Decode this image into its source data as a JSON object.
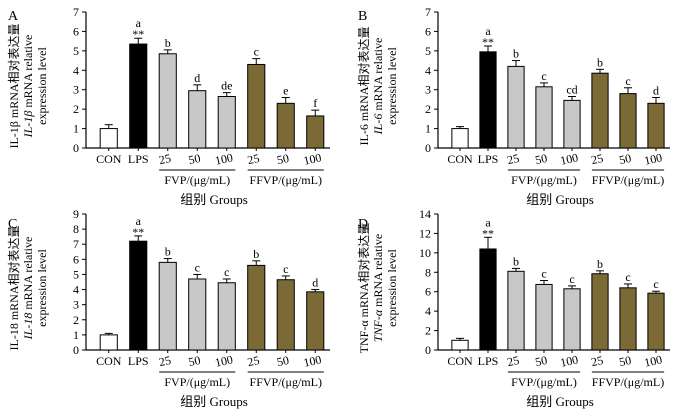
{
  "colors": {
    "con": "#ffffff",
    "lps": "#000000",
    "fvp": "#c8c8c8",
    "ffvp": "#7b6a35"
  },
  "chart_data": [
    {
      "type": "bar",
      "panel_label": "A",
      "ylabel": {
        "prefix": "",
        "italic": "IL-1β",
        "rest": " mRNA relative",
        "line2": "expression level",
        "cn": "IL-1β mRNA相对表达量"
      },
      "ylim": [
        0,
        7
      ],
      "yticks": [
        0,
        1,
        2,
        3,
        4,
        5,
        6,
        7
      ],
      "categories": [
        "CON",
        "LPS",
        "25",
        "50",
        "100",
        "25",
        "50",
        "100"
      ],
      "groups": [
        "con",
        "lps",
        "fvp",
        "fvp",
        "fvp",
        "ffvp",
        "ffvp",
        "ffvp"
      ],
      "values": [
        1.0,
        5.35,
        4.85,
        2.95,
        2.65,
        4.3,
        2.3,
        1.65
      ],
      "errors": [
        0.2,
        0.3,
        0.2,
        0.3,
        0.2,
        0.3,
        0.3,
        0.3
      ],
      "letters": [
        "",
        "a",
        "b",
        "d",
        "de",
        "c",
        "e",
        "f"
      ],
      "stars": [
        "",
        "**",
        "",
        "",
        "",
        "",
        "",
        ""
      ],
      "group_labels": [
        "FVP/(μg/mL)",
        "FFVP/(μg/mL)"
      ],
      "xlabel": "组别 Groups"
    },
    {
      "type": "bar",
      "panel_label": "B",
      "ylabel": {
        "prefix": "",
        "italic": "IL-6",
        "rest": " mRNA relative",
        "line2": "expression level",
        "cn": "IL-6 mRNA相对表达量"
      },
      "ylim": [
        0,
        7
      ],
      "yticks": [
        0,
        1,
        2,
        3,
        4,
        5,
        6,
        7
      ],
      "categories": [
        "CON",
        "LPS",
        "25",
        "50",
        "100",
        "25",
        "50",
        "100"
      ],
      "groups": [
        "con",
        "lps",
        "fvp",
        "fvp",
        "fvp",
        "ffvp",
        "ffvp",
        "ffvp"
      ],
      "values": [
        1.0,
        4.95,
        4.2,
        3.15,
        2.45,
        3.85,
        2.8,
        2.3
      ],
      "errors": [
        0.1,
        0.3,
        0.3,
        0.2,
        0.2,
        0.2,
        0.3,
        0.3
      ],
      "letters": [
        "",
        "a",
        "b",
        "c",
        "cd",
        "b",
        "c",
        "d"
      ],
      "stars": [
        "",
        "**",
        "",
        "",
        "",
        "",
        "",
        ""
      ],
      "group_labels": [
        "FVP/(μg/mL)",
        "FFVP/(μg/mL)"
      ],
      "xlabel": "组别 Groups"
    },
    {
      "type": "bar",
      "panel_label": "C",
      "ylabel": {
        "prefix": "",
        "italic": "IL-18",
        "rest": " mRNA relative",
        "line2": "expression level",
        "cn": "IL-18 mRNA相对表达量"
      },
      "ylim": [
        0,
        9
      ],
      "yticks": [
        0,
        1,
        2,
        3,
        4,
        5,
        6,
        7,
        8,
        9
      ],
      "categories": [
        "CON",
        "LPS",
        "25",
        "50",
        "100",
        "25",
        "50",
        "100"
      ],
      "groups": [
        "con",
        "lps",
        "fvp",
        "fvp",
        "fvp",
        "ffvp",
        "ffvp",
        "ffvp"
      ],
      "values": [
        1.0,
        7.2,
        5.8,
        4.7,
        4.45,
        5.6,
        4.65,
        3.85
      ],
      "errors": [
        0.1,
        0.35,
        0.25,
        0.3,
        0.25,
        0.3,
        0.25,
        0.15
      ],
      "letters": [
        "",
        "a",
        "b",
        "c",
        "c",
        "b",
        "c",
        "d"
      ],
      "stars": [
        "",
        "**",
        "",
        "",
        "",
        "",
        "",
        ""
      ],
      "group_labels": [
        "FVP/(μg/mL)",
        "FFVP/(μg/mL)"
      ],
      "xlabel": "组别 Groups"
    },
    {
      "type": "bar",
      "panel_label": "D",
      "ylabel": {
        "prefix": "",
        "italic": "TNF-α",
        "rest": " mRNA relative",
        "line2": "expression level",
        "cn": "TNF-α mRNA相对表达量"
      },
      "ylim": [
        0,
        14
      ],
      "yticks": [
        0,
        2,
        4,
        6,
        8,
        10,
        12,
        14
      ],
      "categories": [
        "CON",
        "LPS",
        "25",
        "50",
        "100",
        "25",
        "50",
        "100"
      ],
      "groups": [
        "con",
        "lps",
        "fvp",
        "fvp",
        "fvp",
        "ffvp",
        "ffvp",
        "ffvp"
      ],
      "values": [
        1.0,
        10.4,
        8.1,
        6.75,
        6.3,
        7.85,
        6.4,
        5.85
      ],
      "errors": [
        0.2,
        1.2,
        0.3,
        0.4,
        0.3,
        0.3,
        0.4,
        0.2
      ],
      "letters": [
        "",
        "a",
        "b",
        "c",
        "c",
        "b",
        "c",
        "c"
      ],
      "stars": [
        "",
        "**",
        "",
        "",
        "",
        "",
        "",
        ""
      ],
      "group_labels": [
        "FVP/(μg/mL)",
        "FFVP/(μg/mL)"
      ],
      "xlabel": "组别 Groups"
    }
  ]
}
